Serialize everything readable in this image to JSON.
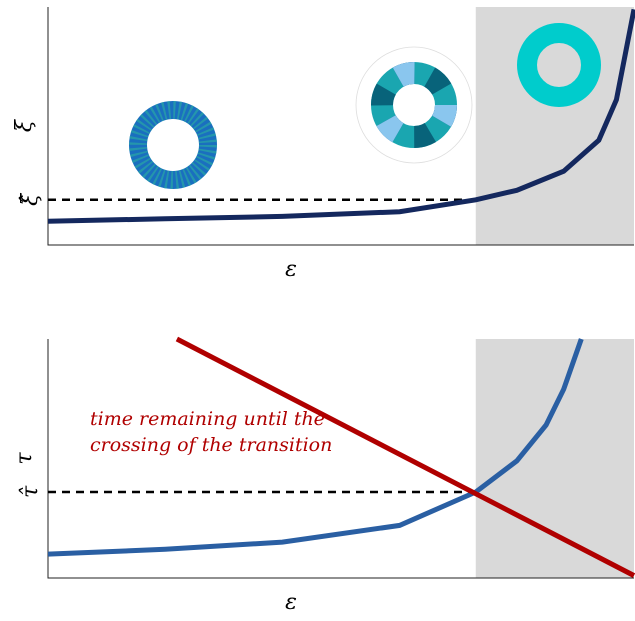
{
  "chart_data": [
    {
      "type": "line",
      "y_label": "ξ",
      "x_label": "ε",
      "xlim": [
        0,
        1
      ],
      "ylim": [
        0,
        1
      ],
      "yticks": [
        {
          "value": 0.19,
          "label": "ξ̂"
        }
      ],
      "shaded_xrange": [
        0.73,
        1
      ],
      "guide_dashed": true,
      "series": [
        {
          "color": "#14285e",
          "x": [
            0,
            0.2,
            0.4,
            0.6,
            0.73,
            0.8,
            0.88,
            0.94,
            0.97,
            1.0
          ],
          "values": [
            0.1,
            0.11,
            0.12,
            0.14,
            0.19,
            0.23,
            0.31,
            0.44,
            0.61,
            0.99
          ]
        }
      ]
    },
    {
      "type": "line",
      "y_label": "τ",
      "x_label": "ε",
      "xlim": [
        0,
        1
      ],
      "ylim": [
        0,
        1
      ],
      "yticks": [
        {
          "value": 0.36,
          "label": "τ̂"
        }
      ],
      "shaded_xrange": [
        0.73,
        1
      ],
      "guide_dashed": true,
      "annotation": {
        "lines": [
          "time remaining until the",
          "crossing of the transition"
        ],
        "color": "#b00000"
      },
      "series": [
        {
          "color": "#2a5fa3",
          "x": [
            0,
            0.2,
            0.4,
            0.6,
            0.73,
            0.8,
            0.85,
            0.88,
            0.91
          ],
          "values": [
            0.1,
            0.12,
            0.15,
            0.22,
            0.36,
            0.49,
            0.64,
            0.79,
            1.0
          ]
        },
        {
          "color": "#b00000",
          "x": [
            0.22,
            1.0
          ],
          "values": [
            1.0,
            0.01
          ]
        }
      ]
    }
  ]
}
